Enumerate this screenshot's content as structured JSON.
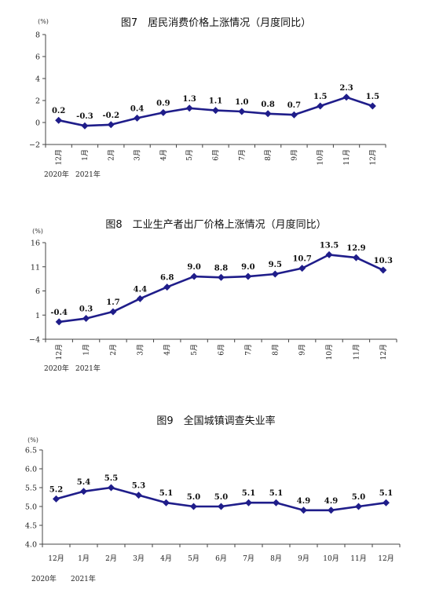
{
  "chart_data": [
    {
      "type": "line",
      "title": "图7　居民消费价格上涨情况（月度同比）",
      "unit": "(%)",
      "categories": [
        "12月",
        "1月",
        "2月",
        "3月",
        "4月",
        "5月",
        "6月",
        "7月",
        "8月",
        "9月",
        "10月",
        "11月",
        "12月"
      ],
      "year_labels": [
        "2020年",
        "2021年"
      ],
      "values": [
        0.2,
        -0.3,
        -0.2,
        0.4,
        0.9,
        1.3,
        1.1,
        1.0,
        0.8,
        0.7,
        1.5,
        2.3,
        1.5
      ],
      "data_labels": [
        "0.2",
        "-0.3",
        "-0.2",
        "0.4",
        "0.9",
        "1.3",
        "1.1",
        "1.0",
        "0.8",
        "0.7",
        "1.5",
        "2.3",
        "1.5"
      ],
      "yticks": [
        "8",
        "6",
        "4",
        "2",
        "0",
        "−2"
      ],
      "ylim": [
        -2,
        8
      ],
      "xlabel_rotated": true
    },
    {
      "type": "line",
      "title": "图8　工业生产者出厂价格上涨情况（月度同比）",
      "unit": "(%)",
      "categories": [
        "12月",
        "1月",
        "2月",
        "3月",
        "4月",
        "5月",
        "6月",
        "7月",
        "8月",
        "9月",
        "10月",
        "11月",
        "12月"
      ],
      "year_labels": [
        "2020年",
        "2021年"
      ],
      "values": [
        -0.4,
        0.3,
        1.7,
        4.4,
        6.8,
        9.0,
        8.8,
        9.0,
        9.5,
        10.7,
        13.5,
        12.9,
        10.3
      ],
      "data_labels": [
        "-0.4",
        "0.3",
        "1.7",
        "4.4",
        "6.8",
        "9.0",
        "8.8",
        "9.0",
        "9.5",
        "10.7",
        "13.5",
        "12.9",
        "10.3"
      ],
      "yticks": [
        "16",
        "11",
        "6",
        "1",
        "−4"
      ],
      "ylim": [
        -4,
        16
      ],
      "xlabel_rotated": true
    },
    {
      "type": "line",
      "title": "图9　全国城镇调查失业率",
      "unit": "(%)",
      "categories": [
        "12月",
        "1月",
        "2月",
        "3月",
        "4月",
        "5月",
        "6月",
        "7月",
        "8月",
        "9月",
        "10月",
        "11月",
        "12月"
      ],
      "year_labels": [
        "2020年",
        "2021年"
      ],
      "values": [
        5.2,
        5.4,
        5.5,
        5.3,
        5.1,
        5.0,
        5.0,
        5.1,
        5.1,
        4.9,
        4.9,
        5.0,
        5.1
      ],
      "data_labels": [
        "5.2",
        "5.4",
        "5.5",
        "5.3",
        "5.1",
        "5.0",
        "5.0",
        "5.1",
        "5.1",
        "4.9",
        "4.9",
        "5.0",
        "5.1"
      ],
      "yticks": [
        "6.5",
        "6.0",
        "5.5",
        "5.0",
        "4.5",
        "4.0"
      ],
      "ylim": [
        4.0,
        6.5
      ],
      "xlabel_rotated": false
    }
  ],
  "colors": {
    "series": "#1f1d8a",
    "axis": "#444444"
  }
}
